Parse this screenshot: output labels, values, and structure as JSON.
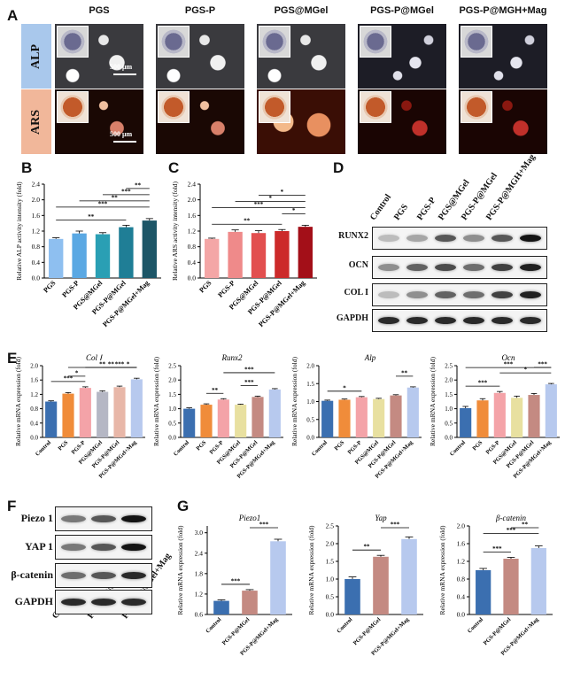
{
  "panels": {
    "A": "A",
    "B": "B",
    "C": "C",
    "D": "D",
    "E": "E",
    "F": "F",
    "G": "G"
  },
  "panelA": {
    "columns": [
      "PGS",
      "PGS-P",
      "PGS@MGel",
      "PGS-P@MGel",
      "PGS-P@MGH+Mag"
    ],
    "rows": [
      "ALP",
      "ARS"
    ],
    "scale_bar": "500 μm",
    "row_colors": {
      "ALP": "#a9c8ec",
      "ARS": "#f1b79a"
    }
  },
  "chart_data": [
    {
      "id": "B",
      "type": "bar",
      "ylabel": "Relative ALP activity intensity (fold)",
      "categories": [
        "PGS",
        "PGS-P",
        "PGS@MGel",
        "PGS-P@MGel",
        "PGS-P@MGel+Mag"
      ],
      "values": [
        1.0,
        1.14,
        1.12,
        1.3,
        1.47
      ],
      "errors": [
        0.03,
        0.06,
        0.04,
        0.05,
        0.05
      ],
      "ylim": [
        0,
        2.4
      ],
      "ticks": [
        "0.0",
        "0.4",
        "0.8",
        "1.2",
        "1.6",
        "2.0",
        "2.4"
      ],
      "colors": [
        "#8ebff0",
        "#5aa8e3",
        "#2a9fb4",
        "#1f7e96",
        "#1d5667"
      ],
      "sig": [
        {
          "a": 0,
          "b": 3,
          "label": "**"
        },
        {
          "a": 0,
          "b": 4,
          "label": "***"
        },
        {
          "a": 1,
          "b": 4,
          "label": "**"
        },
        {
          "a": 2,
          "b": 4,
          "label": "***"
        },
        {
          "a": 3,
          "b": 4,
          "label": "**"
        }
      ]
    },
    {
      "id": "C",
      "type": "bar",
      "ylabel": "Relative ARS activity intensity (fold)",
      "categories": [
        "PGS",
        "PGS-P",
        "PGS@MGel",
        "PGS-P@MGel",
        "PGS-P@MGel+Mag"
      ],
      "values": [
        1.0,
        1.18,
        1.15,
        1.2,
        1.31
      ],
      "errors": [
        0.02,
        0.05,
        0.06,
        0.04,
        0.04
      ],
      "ylim": [
        0,
        2.4
      ],
      "ticks": [
        "0.0",
        "0.4",
        "0.8",
        "1.2",
        "1.6",
        "2.0",
        "2.4"
      ],
      "colors": [
        "#f4a6a6",
        "#ef8a8a",
        "#e24f4f",
        "#cc2a2a",
        "#a30f18"
      ],
      "sig": [
        {
          "a": 0,
          "b": 3,
          "label": "**"
        },
        {
          "a": 3,
          "b": 4,
          "label": "*"
        },
        {
          "a": 0,
          "b": 4,
          "label": "***"
        },
        {
          "a": 1,
          "b": 4,
          "label": "*"
        },
        {
          "a": 2,
          "b": 4,
          "label": "*"
        }
      ]
    },
    {
      "id": "E1",
      "type": "bar",
      "title": "Col Ⅰ",
      "ylabel": "Relative mRNA expression (fold)",
      "categories": [
        "Control",
        "PGS",
        "PGS-P",
        "PGS@MGel",
        "PGS-P@MGel",
        "PGS-P@MGel+Mag"
      ],
      "values": [
        1.0,
        1.22,
        1.38,
        1.27,
        1.4,
        1.62
      ],
      "errors": [
        0.02,
        0.03,
        0.03,
        0.03,
        0.03,
        0.03
      ],
      "ylim": [
        0,
        2.0
      ],
      "ticks": [
        "0.0",
        "0.4",
        "0.8",
        "1.2",
        "1.6",
        "2.0"
      ],
      "colors": [
        "#3b6fb0",
        "#f08c3a",
        "#f4a3a8",
        "#b5b7c4",
        "#e8b7a8",
        "#b7c9ee"
      ],
      "sig": [
        {
          "a": 0,
          "b": 2,
          "label": "***"
        },
        {
          "a": 1,
          "b": 2,
          "label": "*"
        },
        {
          "a": 2,
          "b": 5,
          "label": "**"
        },
        {
          "a": 1,
          "b": 5,
          "label": "**"
        },
        {
          "a": 3,
          "b": 5,
          "label": "***"
        },
        {
          "a": 4,
          "b": 5,
          "label": "*"
        }
      ]
    },
    {
      "id": "E2",
      "type": "bar",
      "title": "Runx2",
      "ylabel": "Relative mRNA expression (fold)",
      "categories": [
        "Control",
        "PGS",
        "PGS-P",
        "PGS@MGel",
        "PGS-P@MGel",
        "PGS-P@MGel+Mag"
      ],
      "values": [
        1.0,
        1.14,
        1.32,
        1.14,
        1.41,
        1.67
      ],
      "errors": [
        0.03,
        0.03,
        0.03,
        0.02,
        0.03,
        0.03
      ],
      "ylim": [
        0,
        2.5
      ],
      "ticks": [
        "0.0",
        "0.5",
        "1.0",
        "1.5",
        "2.0",
        "2.5"
      ],
      "colors": [
        "#3b6fb0",
        "#f08c3a",
        "#f4a3a8",
        "#e8e0a0",
        "#c48a82",
        "#b7c9ee"
      ],
      "sig": [
        {
          "a": 1,
          "b": 2,
          "label": "**"
        },
        {
          "a": 3,
          "b": 4,
          "label": "***"
        },
        {
          "a": 2,
          "b": 5,
          "label": "***"
        }
      ]
    },
    {
      "id": "E3",
      "type": "bar",
      "title": "Alp",
      "ylabel": "Relative mRNA expression (fold)",
      "categories": [
        "Control",
        "PGS",
        "PGS-P",
        "PGS@MGel",
        "PGS-P@MGel",
        "PGS-P@MGel+Mag"
      ],
      "values": [
        1.02,
        1.05,
        1.12,
        1.07,
        1.17,
        1.39
      ],
      "errors": [
        0.02,
        0.02,
        0.02,
        0.02,
        0.02,
        0.02
      ],
      "ylim": [
        0,
        2.0
      ],
      "ticks": [
        "0.0",
        "0.5",
        "1.0",
        "1.5",
        "2.0"
      ],
      "colors": [
        "#3b6fb0",
        "#f08c3a",
        "#f4a3a8",
        "#e8e0a0",
        "#c48a82",
        "#b7c9ee"
      ],
      "sig": [
        {
          "a": 0,
          "b": 2,
          "label": "*"
        },
        {
          "a": 4,
          "b": 5,
          "label": "**"
        }
      ]
    },
    {
      "id": "E4",
      "type": "bar",
      "title": "Ocn",
      "ylabel": "Relative mRNA expression (fold)",
      "categories": [
        "Control",
        "PGS",
        "PGS-P",
        "PGS@MGel",
        "PGS-P@MGel",
        "PGS-P@MGel+Mag"
      ],
      "values": [
        1.02,
        1.29,
        1.55,
        1.38,
        1.48,
        1.85
      ],
      "errors": [
        0.06,
        0.06,
        0.05,
        0.06,
        0.05,
        0.03
      ],
      "ylim": [
        0,
        2.5
      ],
      "ticks": [
        "0.0",
        "0.5",
        "1.0",
        "1.5",
        "2.0",
        "2.5"
      ],
      "colors": [
        "#3b6fb0",
        "#f08c3a",
        "#f4a3a8",
        "#e8e0a0",
        "#c48a82",
        "#b7c9ee"
      ],
      "sig": [
        {
          "a": 0,
          "b": 2,
          "label": "***"
        },
        {
          "a": 2,
          "b": 5,
          "label": "*"
        },
        {
          "a": 0,
          "b": 5,
          "label": "***"
        },
        {
          "a": 4,
          "b": 5,
          "label": "***"
        }
      ]
    },
    {
      "id": "G1",
      "type": "bar",
      "title": "Piezo1",
      "ylabel": "Relative mRNA expression (fold)",
      "categories": [
        "Control",
        "PGS-P@MGel",
        "PGS-P@MGel+Mag"
      ],
      "values": [
        1.0,
        1.3,
        2.75
      ],
      "errors": [
        0.03,
        0.03,
        0.06
      ],
      "ylim": [
        0.6,
        3.2
      ],
      "ticks": [
        "0.6",
        "1.2",
        "1.8",
        "2.4",
        "3.0"
      ],
      "colors": [
        "#3b6fb0",
        "#c48a82",
        "#b7c9ee"
      ],
      "sig": [
        {
          "a": 0,
          "b": 1,
          "label": "***"
        },
        {
          "a": 1,
          "b": 2,
          "label": "***"
        }
      ]
    },
    {
      "id": "G2",
      "type": "bar",
      "title": "Yap",
      "ylabel": "Relative mRNA expression (fold)",
      "categories": [
        "Control",
        "PGS-P@MGel",
        "PGS-P@MGel+Mag"
      ],
      "values": [
        1.0,
        1.63,
        2.13
      ],
      "errors": [
        0.06,
        0.04,
        0.06
      ],
      "ylim": [
        0,
        2.5
      ],
      "ticks": [
        "0.0",
        "0.5",
        "1.0",
        "1.5",
        "2.0",
        "2.5"
      ],
      "colors": [
        "#3b6fb0",
        "#c48a82",
        "#b7c9ee"
      ],
      "sig": [
        {
          "a": 0,
          "b": 1,
          "label": "**"
        },
        {
          "a": 1,
          "b": 2,
          "label": "***"
        }
      ]
    },
    {
      "id": "G3",
      "type": "bar",
      "title": "β-catenin",
      "ylabel": "Relative mRNA expression (fold)",
      "categories": [
        "Control",
        "PGS-P@MGel",
        "PGS-P@MGel+Mag"
      ],
      "values": [
        1.0,
        1.26,
        1.5
      ],
      "errors": [
        0.04,
        0.03,
        0.05
      ],
      "ylim": [
        0,
        2.0
      ],
      "ticks": [
        "0.0",
        "0.4",
        "0.8",
        "1.2",
        "1.6",
        "2.0"
      ],
      "colors": [
        "#3b6fb0",
        "#c48a82",
        "#b7c9ee"
      ],
      "sig": [
        {
          "a": 0,
          "b": 1,
          "label": "***"
        },
        {
          "a": 0,
          "b": 2,
          "label": "***"
        },
        {
          "a": 1,
          "b": 2,
          "label": "**"
        }
      ]
    }
  ],
  "panelD": {
    "columns": [
      "Control",
      "PGS",
      "PGS-P",
      "PGS@MGel",
      "PGS-P@MGel",
      "PGS-P@MGH+Mag"
    ],
    "rows": [
      "RUNX2",
      "OCN",
      "COL I",
      "GAPDH"
    ],
    "intensity": [
      [
        0.25,
        0.35,
        0.7,
        0.45,
        0.7,
        1.0
      ],
      [
        0.45,
        0.65,
        0.75,
        0.6,
        0.8,
        0.95
      ],
      [
        0.25,
        0.45,
        0.65,
        0.6,
        0.8,
        0.95
      ],
      [
        0.9,
        0.9,
        0.9,
        0.9,
        0.9,
        0.9
      ]
    ]
  },
  "panelF": {
    "columns": [
      "Control",
      "PGS-P@MGel",
      "PGS-P@MGel+Mag"
    ],
    "rows": [
      "Piezo 1",
      "YAP 1",
      "β-catenin",
      "GAPDH"
    ],
    "intensity": [
      [
        0.55,
        0.7,
        1.0
      ],
      [
        0.55,
        0.7,
        1.0
      ],
      [
        0.6,
        0.7,
        0.9
      ],
      [
        0.9,
        0.9,
        0.9
      ]
    ]
  }
}
